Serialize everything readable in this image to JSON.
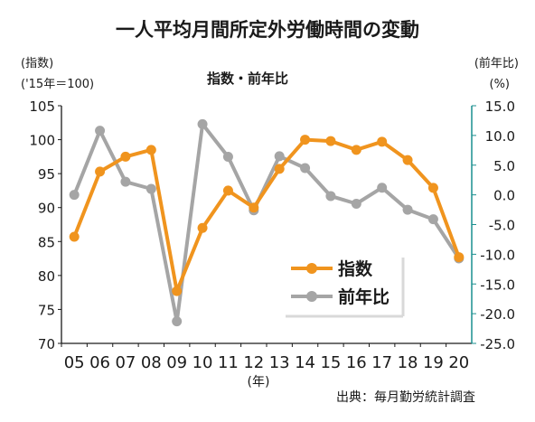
{
  "chart_data": {
    "type": "line",
    "title": "一人平均月間所定外労働時間の変動",
    "subtitle": "指数・前年比",
    "left_axis": {
      "label_line1": "(指数)",
      "label_line2": "('15年＝100)",
      "ylim": [
        70,
        105
      ],
      "ticks": [
        "70",
        "75",
        "80",
        "85",
        "90",
        "95",
        "100",
        "105"
      ]
    },
    "right_axis": {
      "label_line1": "(前年比)",
      "label_line2": "(%)",
      "ylim": [
        -25,
        15
      ],
      "ticks": [
        "-25.0",
        "-20.0",
        "-15.0",
        "-10.0",
        "-5.0",
        "0.0",
        "5.0",
        "10.0",
        "15.0"
      ],
      "color": "#1a8f8f"
    },
    "categories": [
      "05",
      "06",
      "07",
      "08",
      "09",
      "10",
      "11",
      "12",
      "13",
      "14",
      "15",
      "16",
      "17",
      "18",
      "19",
      "20"
    ],
    "xlabel": "(年)",
    "series": [
      {
        "name": "指数",
        "axis": "left",
        "color": "#f0941e",
        "values": [
          85.7,
          95.3,
          97.5,
          98.5,
          77.7,
          87.0,
          92.5,
          90.0,
          95.7,
          100.0,
          99.8,
          98.5,
          99.7,
          97.0,
          92.9,
          82.7
        ]
      },
      {
        "name": "前年比",
        "axis": "right",
        "color": "#a5a5a5",
        "values": [
          0.0,
          10.8,
          2.2,
          1.0,
          -21.3,
          11.9,
          6.4,
          -2.6,
          6.5,
          4.5,
          -0.2,
          -1.5,
          1.2,
          -2.5,
          -4.1,
          -10.7
        ]
      }
    ],
    "legend_position": "bottom-right",
    "grid": false,
    "source": "出典：毎月勤労統計調査"
  }
}
